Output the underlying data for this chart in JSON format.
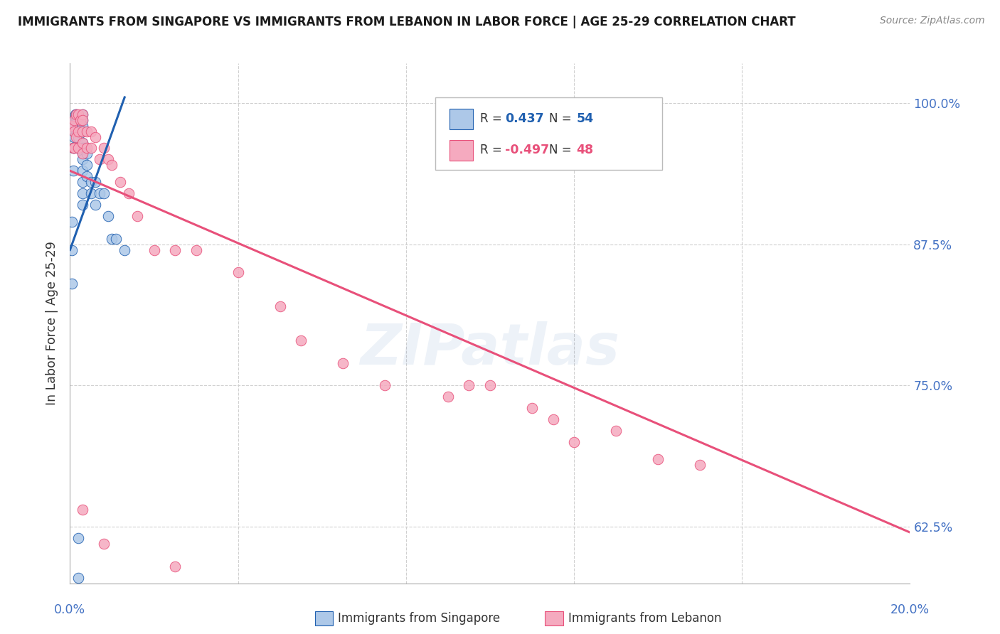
{
  "title": "IMMIGRANTS FROM SINGAPORE VS IMMIGRANTS FROM LEBANON IN LABOR FORCE | AGE 25-29 CORRELATION CHART",
  "source": "Source: ZipAtlas.com",
  "ylabel": "In Labor Force | Age 25-29",
  "yticks": [
    0.625,
    0.75,
    0.875,
    1.0
  ],
  "ytick_labels": [
    "62.5%",
    "75.0%",
    "87.5%",
    "100.0%"
  ],
  "xticks": [
    0.0,
    0.04,
    0.08,
    0.12,
    0.16,
    0.2
  ],
  "xmin": 0.0,
  "xmax": 0.2,
  "ymin": 0.575,
  "ymax": 1.035,
  "legend_r_singapore": "0.437",
  "legend_n_singapore": "54",
  "legend_r_lebanon": "-0.497",
  "legend_n_lebanon": "48",
  "singapore_color": "#adc8e8",
  "lebanon_color": "#f5aabf",
  "singapore_line_color": "#2060b0",
  "lebanon_line_color": "#e8507a",
  "title_color": "#1a1a1a",
  "axis_label_color": "#4472c4",
  "background_color": "#ffffff",
  "grid_color": "#d0d0d0",
  "watermark_text": "ZIPatlas",
  "sg_x": [
    0.0005,
    0.0005,
    0.0005,
    0.0008,
    0.0008,
    0.001,
    0.001,
    0.001,
    0.001,
    0.001,
    0.0012,
    0.0012,
    0.0015,
    0.0015,
    0.0015,
    0.0015,
    0.0018,
    0.0018,
    0.002,
    0.002,
    0.002,
    0.002,
    0.0022,
    0.0022,
    0.0025,
    0.0025,
    0.003,
    0.003,
    0.003,
    0.003,
    0.003,
    0.003,
    0.003,
    0.003,
    0.003,
    0.003,
    0.003,
    0.003,
    0.0035,
    0.004,
    0.004,
    0.004,
    0.005,
    0.005,
    0.006,
    0.006,
    0.007,
    0.008,
    0.009,
    0.01,
    0.011,
    0.013,
    0.002,
    0.002
  ],
  "sg_y": [
    0.895,
    0.87,
    0.84,
    0.96,
    0.94,
    0.985,
    0.98,
    0.975,
    0.97,
    0.96,
    0.99,
    0.985,
    0.99,
    0.988,
    0.985,
    0.975,
    0.985,
    0.975,
    0.98,
    0.975,
    0.97,
    0.96,
    0.975,
    0.96,
    0.975,
    0.96,
    0.99,
    0.985,
    0.98,
    0.975,
    0.965,
    0.96,
    0.955,
    0.95,
    0.94,
    0.93,
    0.92,
    0.91,
    0.96,
    0.955,
    0.945,
    0.935,
    0.93,
    0.92,
    0.93,
    0.91,
    0.92,
    0.92,
    0.9,
    0.88,
    0.88,
    0.87,
    0.615,
    0.58
  ],
  "lb_x": [
    0.0005,
    0.0008,
    0.001,
    0.001,
    0.001,
    0.0015,
    0.0015,
    0.002,
    0.002,
    0.002,
    0.0025,
    0.003,
    0.003,
    0.003,
    0.003,
    0.003,
    0.004,
    0.004,
    0.005,
    0.005,
    0.006,
    0.007,
    0.008,
    0.009,
    0.01,
    0.012,
    0.014,
    0.016,
    0.02,
    0.025,
    0.03,
    0.04,
    0.05,
    0.055,
    0.065,
    0.075,
    0.09,
    0.095,
    0.1,
    0.11,
    0.115,
    0.12,
    0.13,
    0.14,
    0.15,
    0.003,
    0.008,
    0.025
  ],
  "lb_y": [
    0.98,
    0.96,
    0.985,
    0.975,
    0.96,
    0.99,
    0.97,
    0.99,
    0.975,
    0.96,
    0.985,
    0.99,
    0.985,
    0.975,
    0.965,
    0.955,
    0.975,
    0.96,
    0.975,
    0.96,
    0.97,
    0.95,
    0.96,
    0.95,
    0.945,
    0.93,
    0.92,
    0.9,
    0.87,
    0.87,
    0.87,
    0.85,
    0.82,
    0.79,
    0.77,
    0.75,
    0.74,
    0.75,
    0.75,
    0.73,
    0.72,
    0.7,
    0.71,
    0.685,
    0.68,
    0.64,
    0.61,
    0.59
  ],
  "sg_trend_x": [
    0.0,
    0.013
  ],
  "sg_trend_y": [
    0.87,
    1.005
  ],
  "lb_trend_x": [
    0.0,
    0.2
  ],
  "lb_trend_y": [
    0.94,
    0.62
  ]
}
